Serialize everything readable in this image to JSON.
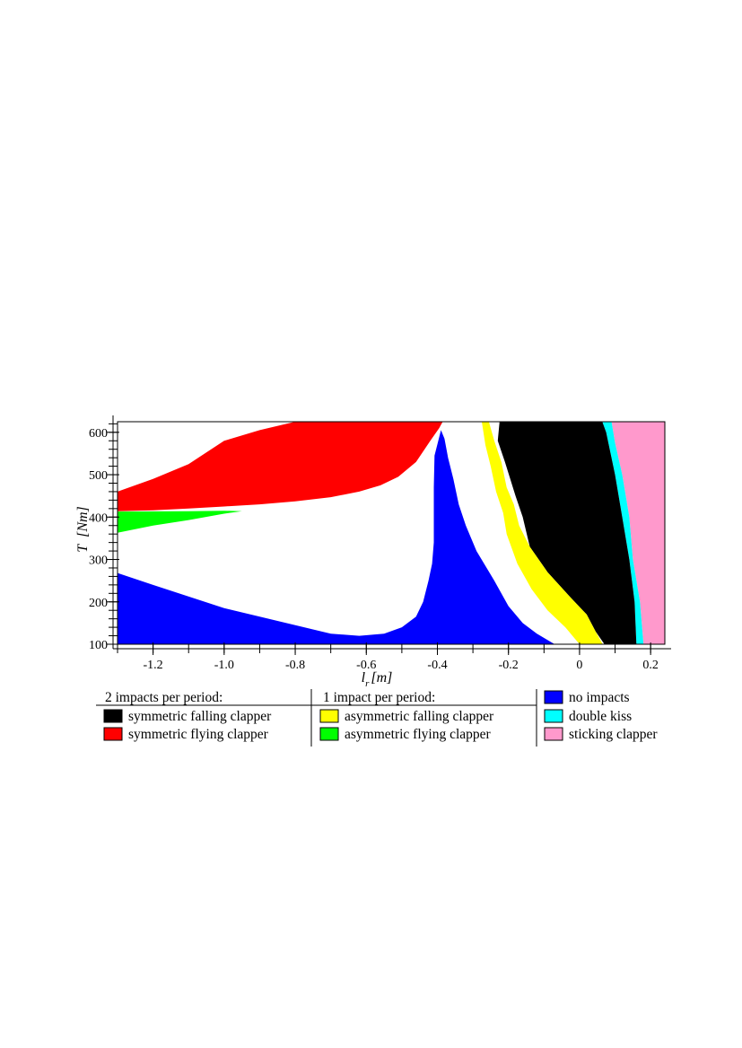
{
  "chart_data": {
    "type": "area",
    "title": "",
    "xlabel": {
      "symbol": "l",
      "subscript": "r",
      "unit": "[m]"
    },
    "ylabel": {
      "symbol": "T",
      "unit": "[Nm]"
    },
    "xlim": [
      -1.3,
      0.24
    ],
    "ylim": [
      100,
      625
    ],
    "xticks": [
      -1.2,
      -1.0,
      -0.8,
      -0.6,
      -0.4,
      -0.2,
      0,
      0.2
    ],
    "xtick_labels": [
      "-1.2",
      "-1.0",
      "-0.8",
      "-0.6",
      "-0.4",
      "-0.2",
      "0",
      "0.2"
    ],
    "yticks": [
      100,
      200,
      300,
      400,
      500,
      600
    ],
    "ytick_labels": [
      "100",
      "200",
      "300",
      "400",
      "500",
      "600"
    ],
    "grid": false,
    "legend_groups": [
      {
        "heading": "2 impacts per period:",
        "entries": [
          "symmetric falling clapper",
          "symmetric flying clapper"
        ]
      },
      {
        "heading": "1 impact per period:",
        "entries": [
          "asymmetric falling clapper",
          "asymmetric flying clapper"
        ]
      },
      {
        "heading": "",
        "entries": [
          "no impacts",
          "double kiss",
          "sticking clapper"
        ]
      }
    ],
    "regions": [
      {
        "name": "sticking clapper",
        "color": "#ff99cc",
        "polygon": [
          [
            0.09,
            625
          ],
          [
            0.24,
            625
          ],
          [
            0.24,
            100
          ],
          [
            0.18,
            100
          ],
          [
            0.17,
            200
          ],
          [
            0.15,
            300
          ],
          [
            0.14,
            400
          ],
          [
            0.12,
            500
          ],
          [
            0.1,
            575
          ]
        ]
      },
      {
        "name": "double kiss",
        "color": "#00ffff",
        "polygon": [
          [
            0.064,
            625
          ],
          [
            0.09,
            625
          ],
          [
            0.1,
            575
          ],
          [
            0.12,
            500
          ],
          [
            0.14,
            400
          ],
          [
            0.15,
            300
          ],
          [
            0.17,
            200
          ],
          [
            0.18,
            100
          ],
          [
            0.16,
            100
          ],
          [
            0.155,
            200
          ],
          [
            0.14,
            300
          ],
          [
            0.12,
            400
          ],
          [
            0.1,
            500
          ],
          [
            0.075,
            600
          ]
        ]
      },
      {
        "name": "symmetric falling clapper",
        "color": "#000000",
        "polygon": [
          [
            -0.225,
            625
          ],
          [
            0.064,
            625
          ],
          [
            0.075,
            600
          ],
          [
            0.1,
            500
          ],
          [
            0.12,
            400
          ],
          [
            0.14,
            300
          ],
          [
            0.155,
            200
          ],
          [
            0.16,
            100
          ],
          [
            0.07,
            100
          ],
          [
            0.045,
            130
          ],
          [
            0.02,
            170
          ],
          [
            -0.025,
            210
          ],
          [
            -0.09,
            270
          ],
          [
            -0.14,
            330
          ],
          [
            -0.16,
            400
          ],
          [
            -0.18,
            450
          ],
          [
            -0.21,
            530
          ],
          [
            -0.23,
            580
          ]
        ]
      },
      {
        "name": "asymmetric falling clapper",
        "color": "#ffff00",
        "polygon": [
          [
            -0.275,
            625
          ],
          [
            -0.255,
            625
          ],
          [
            -0.24,
            580
          ],
          [
            -0.22,
            530
          ],
          [
            -0.205,
            470
          ],
          [
            -0.185,
            430
          ],
          [
            -0.17,
            380
          ],
          [
            -0.14,
            330
          ],
          [
            -0.09,
            270
          ],
          [
            -0.025,
            210
          ],
          [
            0.02,
            170
          ],
          [
            0.045,
            130
          ],
          [
            0.065,
            100
          ],
          [
            -0.0,
            100
          ],
          [
            -0.04,
            140
          ],
          [
            -0.09,
            180
          ],
          [
            -0.135,
            230
          ],
          [
            -0.175,
            290
          ],
          [
            -0.205,
            360
          ],
          [
            -0.215,
            410
          ],
          [
            -0.235,
            460
          ],
          [
            -0.25,
            520
          ],
          [
            -0.265,
            570
          ]
        ]
      },
      {
        "name": "no impacts",
        "color": "#0000ff",
        "polygon": [
          [
            -1.3,
            268
          ],
          [
            -1.2,
            240
          ],
          [
            -1.0,
            185
          ],
          [
            -0.8,
            145
          ],
          [
            -0.7,
            125
          ],
          [
            -0.62,
            120
          ],
          [
            -0.55,
            125
          ],
          [
            -0.5,
            140
          ],
          [
            -0.46,
            165
          ],
          [
            -0.44,
            200
          ],
          [
            -0.425,
            250
          ],
          [
            -0.415,
            290
          ],
          [
            -0.41,
            340
          ],
          [
            -0.41,
            400
          ],
          [
            -0.41,
            470
          ],
          [
            -0.408,
            545
          ],
          [
            -0.39,
            605
          ],
          [
            -0.38,
            585
          ],
          [
            -0.37,
            540
          ],
          [
            -0.355,
            490
          ],
          [
            -0.34,
            430
          ],
          [
            -0.32,
            380
          ],
          [
            -0.29,
            320
          ],
          [
            -0.24,
            250
          ],
          [
            -0.2,
            190
          ],
          [
            -0.16,
            150
          ],
          [
            -0.12,
            125
          ],
          [
            -0.07,
            100
          ],
          [
            -1.3,
            100
          ]
        ]
      },
      {
        "name": "symmetric flying clapper",
        "color": "#ff0000",
        "polygon": [
          [
            -1.3,
            460
          ],
          [
            -1.2,
            490
          ],
          [
            -1.1,
            525
          ],
          [
            -1.0,
            580
          ],
          [
            -0.9,
            605
          ],
          [
            -0.8,
            625
          ],
          [
            -0.385,
            625
          ],
          [
            -0.395,
            610
          ],
          [
            -0.42,
            580
          ],
          [
            -0.46,
            530
          ],
          [
            -0.51,
            495
          ],
          [
            -0.56,
            475
          ],
          [
            -0.62,
            460
          ],
          [
            -0.7,
            447
          ],
          [
            -0.8,
            437
          ],
          [
            -0.9,
            430
          ],
          [
            -1.0,
            425
          ],
          [
            -1.1,
            420
          ],
          [
            -1.2,
            416
          ],
          [
            -1.3,
            414
          ]
        ]
      },
      {
        "name": "asymmetric flying clapper",
        "color": "#00ff00",
        "polygon": [
          [
            -1.3,
            413
          ],
          [
            -1.1,
            414
          ],
          [
            -1.0,
            415
          ],
          [
            -0.95,
            414
          ],
          [
            -1.0,
            408
          ],
          [
            -1.1,
            393
          ],
          [
            -1.2,
            380
          ],
          [
            -1.3,
            363
          ]
        ]
      }
    ]
  }
}
